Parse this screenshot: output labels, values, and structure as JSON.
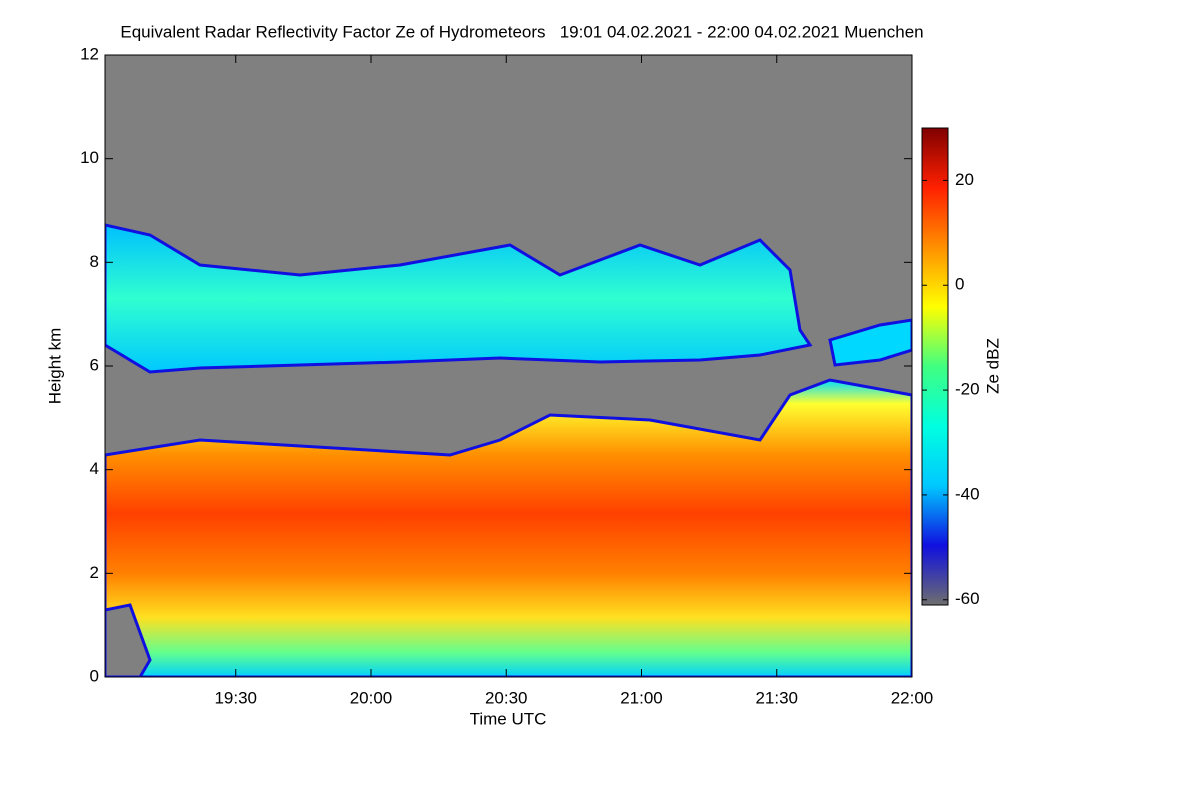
{
  "chart_data": {
    "type": "heatmap",
    "title": "Equivalent Radar Reflectivity Factor Ze of Hydrometeors   19:01 04.02.2021 - 22:00 04.02.2021 Muenchen",
    "x_label": "Time UTC",
    "y_label": "Height km",
    "colorbar_label": "Ze dBZ",
    "xlim": [
      "19:01",
      "22:00"
    ],
    "xticks": [
      "19:30",
      "20:00",
      "20:30",
      "21:00",
      "21:30",
      "22:00"
    ],
    "ylim": [
      0,
      12
    ],
    "yticks": [
      0,
      2,
      4,
      6,
      8,
      10,
      12
    ],
    "zlim": [
      -61,
      30
    ],
    "zticks": [
      -60,
      -40,
      -20,
      0,
      20
    ],
    "colormap": [
      "#6e6e6e",
      "#1010e0",
      "#00c8ff",
      "#00ffe0",
      "#40ff80",
      "#ffff00",
      "#ff9000",
      "#ff2000",
      "#800000"
    ]
  }
}
